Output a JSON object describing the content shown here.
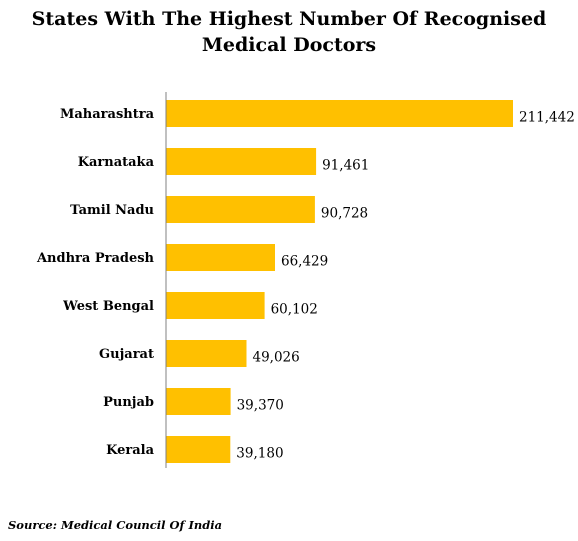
{
  "chart_data": {
    "type": "bar",
    "orientation": "horizontal",
    "title": "States With The Highest Number Of Recognised Medical Doctors",
    "categories": [
      "Maharashtra",
      "Karnataka",
      "Tamil Nadu",
      "Andhra Pradesh",
      "West Bengal",
      "Gujarat",
      "Punjab",
      "Kerala"
    ],
    "values": [
      211442,
      91461,
      90728,
      66429,
      60102,
      49026,
      39370,
      39180
    ],
    "value_labels": [
      "211,442",
      "91,461",
      "90,728",
      "66,429",
      "60,102",
      "49,026",
      "39,370",
      "39,180"
    ],
    "xlim": [
      0,
      211442
    ],
    "grid": false,
    "bar_color": "#FFC000"
  },
  "source": "Source: Medical Council Of India"
}
